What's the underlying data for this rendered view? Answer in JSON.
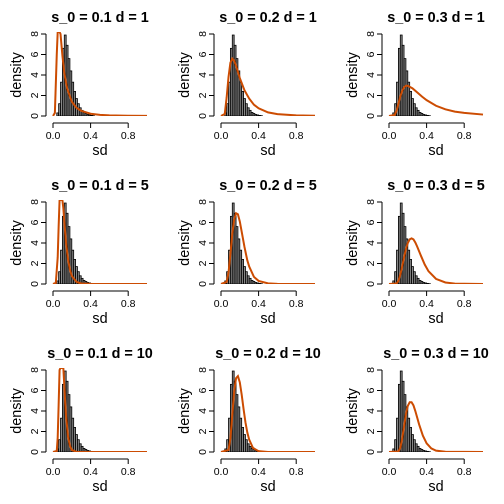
{
  "chart_data": {
    "type": "histogram",
    "layout": {
      "rows": 3,
      "cols": 3
    },
    "shared": {
      "xlabel": "sd",
      "ylabel": "density",
      "xlim": [
        0,
        1
      ],
      "ylim": [
        0,
        8
      ],
      "xticks": [
        0.0,
        0.4,
        0.8
      ],
      "xtick_labels": [
        "0.0",
        "0.4",
        "0.8"
      ],
      "yticks": [
        0,
        2,
        4,
        6,
        8
      ],
      "ytick_labels": [
        "0",
        "2",
        "4",
        "6",
        "8"
      ]
    },
    "histogram": {
      "bin_width": 0.02,
      "bin_starts": [
        0.04,
        0.06,
        0.08,
        0.1,
        0.12,
        0.14,
        0.16,
        0.18,
        0.2,
        0.22,
        0.24,
        0.26,
        0.28,
        0.3,
        0.32,
        0.34,
        0.36,
        0.38,
        0.4,
        0.42
      ],
      "densities": [
        0.3,
        1.2,
        3.3,
        6.6,
        7.9,
        6.9,
        5.6,
        4.4,
        3.3,
        2.4,
        1.7,
        1.2,
        0.8,
        0.55,
        0.35,
        0.25,
        0.15,
        0.1,
        0.06,
        0.03
      ],
      "fill_color": "#888888",
      "stroke_color": "#000000"
    },
    "curve_color": "#cc4c02",
    "panels": [
      {
        "title": "s_0 = 0.1 d = 1",
        "curve": {
          "x": [
            0.0,
            0.02,
            0.04,
            0.05,
            0.06,
            0.07,
            0.08,
            0.1,
            0.12,
            0.15,
            0.2,
            0.25,
            0.3,
            0.4,
            0.5,
            0.6,
            0.8,
            1.0
          ],
          "y": [
            0,
            0.3,
            6.0,
            8.9,
            9.8,
            9.2,
            8.0,
            5.9,
            4.2,
            2.7,
            1.4,
            0.8,
            0.5,
            0.22,
            0.11,
            0.06,
            0.02,
            0.01
          ]
        }
      },
      {
        "title": "s_0 = 0.2 d = 1",
        "curve": {
          "x": [
            0.0,
            0.04,
            0.06,
            0.08,
            0.1,
            0.12,
            0.14,
            0.16,
            0.2,
            0.25,
            0.3,
            0.35,
            0.4,
            0.5,
            0.6,
            0.8,
            1.0
          ],
          "y": [
            0,
            0.2,
            1.8,
            3.8,
            5.2,
            5.6,
            5.4,
            4.9,
            3.7,
            2.5,
            1.7,
            1.1,
            0.75,
            0.35,
            0.18,
            0.06,
            0.02
          ]
        }
      },
      {
        "title": "s_0 = 0.3 d = 1",
        "curve": {
          "x": [
            0.0,
            0.06,
            0.08,
            0.1,
            0.12,
            0.14,
            0.16,
            0.18,
            0.2,
            0.25,
            0.3,
            0.35,
            0.4,
            0.5,
            0.6,
            0.7,
            0.8,
            1.0
          ],
          "y": [
            0,
            0.1,
            0.5,
            1.2,
            1.9,
            2.45,
            2.8,
            2.95,
            2.95,
            2.7,
            2.3,
            1.9,
            1.55,
            1.0,
            0.65,
            0.43,
            0.3,
            0.14
          ]
        }
      },
      {
        "title": "s_0 = 0.1 d = 5",
        "curve": {
          "x": [
            0.0,
            0.03,
            0.05,
            0.06,
            0.07,
            0.08,
            0.09,
            0.1,
            0.11,
            0.12,
            0.14,
            0.16,
            0.18,
            0.2,
            0.25,
            0.3,
            0.4,
            1.0
          ],
          "y": [
            0,
            0.1,
            2.6,
            5.6,
            8.3,
            9.5,
            9.4,
            8.6,
            7.4,
            6.1,
            3.9,
            2.4,
            1.4,
            0.8,
            0.2,
            0.05,
            0.01,
            0
          ]
        }
      },
      {
        "title": "s_0 = 0.2 d = 5",
        "curve": {
          "x": [
            0.0,
            0.06,
            0.08,
            0.1,
            0.12,
            0.14,
            0.16,
            0.18,
            0.2,
            0.22,
            0.25,
            0.28,
            0.3,
            0.35,
            0.4,
            0.5,
            0.6,
            1.0
          ],
          "y": [
            0,
            0.2,
            1.1,
            2.9,
            4.9,
            6.3,
            6.9,
            6.8,
            6.1,
            5.1,
            3.6,
            2.3,
            1.7,
            0.7,
            0.3,
            0.06,
            0.01,
            0
          ]
        }
      },
      {
        "title": "s_0 = 0.3 d = 5",
        "curve": {
          "x": [
            0.0,
            0.08,
            0.1,
            0.12,
            0.14,
            0.16,
            0.18,
            0.2,
            0.22,
            0.24,
            0.26,
            0.28,
            0.3,
            0.34,
            0.38,
            0.42,
            0.5,
            0.6,
            0.7,
            1.0
          ],
          "y": [
            0,
            0.05,
            0.3,
            0.9,
            1.7,
            2.6,
            3.4,
            4.0,
            4.35,
            4.45,
            4.35,
            4.05,
            3.65,
            2.75,
            1.9,
            1.25,
            0.5,
            0.15,
            0.04,
            0
          ]
        }
      },
      {
        "title": "s_0 = 0.1 d = 10",
        "curve": {
          "x": [
            0.0,
            0.04,
            0.05,
            0.06,
            0.07,
            0.08,
            0.09,
            0.1,
            0.11,
            0.12,
            0.13,
            0.14,
            0.16,
            0.18,
            0.2,
            0.25,
            1.0
          ],
          "y": [
            0,
            0.1,
            1.4,
            4.6,
            8.0,
            10.0,
            10.4,
            9.7,
            8.2,
            6.5,
            4.8,
            3.4,
            1.5,
            0.6,
            0.2,
            0.01,
            0
          ]
        }
      },
      {
        "title": "s_0 = 0.2 d = 10",
        "curve": {
          "x": [
            0.0,
            0.08,
            0.1,
            0.12,
            0.14,
            0.16,
            0.18,
            0.2,
            0.22,
            0.24,
            0.26,
            0.28,
            0.3,
            0.34,
            0.4,
            0.5,
            1.0
          ],
          "y": [
            0,
            0.2,
            1.3,
            3.6,
            5.9,
            7.2,
            7.4,
            6.8,
            5.6,
            4.2,
            2.9,
            1.9,
            1.2,
            0.4,
            0.08,
            0,
            0
          ]
        }
      },
      {
        "title": "s_0 = 0.3 d = 10",
        "curve": {
          "x": [
            0.0,
            0.1,
            0.12,
            0.14,
            0.16,
            0.18,
            0.2,
            0.22,
            0.24,
            0.26,
            0.28,
            0.3,
            0.32,
            0.36,
            0.4,
            0.45,
            0.5,
            0.6,
            1.0
          ],
          "y": [
            0,
            0.05,
            0.4,
            1.3,
            2.5,
            3.7,
            4.5,
            4.85,
            4.85,
            4.55,
            4.0,
            3.35,
            2.7,
            1.6,
            0.85,
            0.35,
            0.13,
            0.02,
            0
          ]
        }
      }
    ]
  }
}
